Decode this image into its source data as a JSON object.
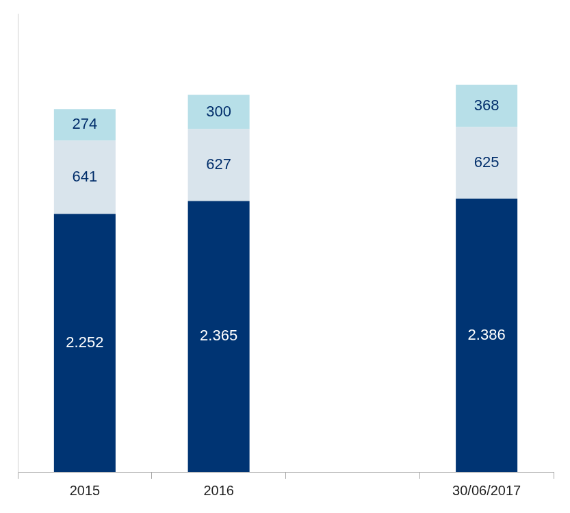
{
  "chart_data": {
    "type": "bar",
    "stacked": true,
    "categories": [
      "2015",
      "2016",
      null,
      "30/06/2017"
    ],
    "series": [
      {
        "color": "#003473",
        "values": [
          2252,
          2365,
          null,
          2386
        ],
        "value_labels": [
          "2.252",
          "2.365",
          null,
          "2.386"
        ]
      },
      {
        "color": "#d9e4ec",
        "values": [
          641,
          627,
          null,
          625
        ]
      },
      {
        "color": "#b7dfe8",
        "values": [
          274,
          300,
          null,
          368
        ]
      }
    ],
    "ylim": [
      0,
      4000
    ],
    "data_labels": true,
    "tick_labels": "x",
    "grid": false
  }
}
